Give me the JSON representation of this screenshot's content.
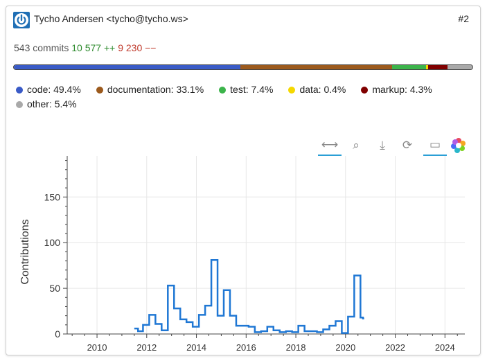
{
  "author": {
    "name_email": "Tycho Andersen <tycho@tycho.ws>",
    "rank": "#2"
  },
  "stats": {
    "commits": "543 commits",
    "additions": "10 577 ++",
    "deletions": "9 230 −−"
  },
  "breakdown": [
    {
      "label": "code: 49.4%",
      "value": 49.4,
      "color": "#3a5bc7"
    },
    {
      "label": "documentation: 33.1%",
      "value": 33.1,
      "color": "#9c5a1d"
    },
    {
      "label": "test: 7.4%",
      "value": 7.4,
      "color": "#3cb44b"
    },
    {
      "label": "data: 0.4%",
      "value": 0.4,
      "color": "#f5d800"
    },
    {
      "label": "markup: 4.3%",
      "value": 4.3,
      "color": "#800000"
    },
    {
      "label": "other: 5.4%",
      "value": 5.4,
      "color": "#a9a9a9"
    }
  ],
  "toolbar": {
    "buttons": [
      {
        "name": "pan-icon",
        "glyph": "⟷",
        "active": true
      },
      {
        "name": "zoom-icon",
        "glyph": "⌕",
        "active": false
      },
      {
        "name": "download-icon",
        "glyph": "⤓",
        "active": false
      },
      {
        "name": "reset-icon",
        "glyph": "⟳",
        "active": false
      },
      {
        "name": "tooltip-icon",
        "glyph": "▭",
        "active": true
      }
    ]
  },
  "chart_data": {
    "type": "line",
    "ylabel": "Contributions",
    "xlabel": "",
    "ylim": [
      0,
      195
    ],
    "xlim": [
      2008.8,
      2024.8
    ],
    "yticks": [
      0,
      50,
      100,
      150
    ],
    "xticks": [
      2010,
      2012,
      2014,
      2016,
      2018,
      2020,
      2022,
      2024
    ],
    "grid": true,
    "step": true,
    "color": "#1f77d4",
    "series": [
      {
        "x": [
          2011.5,
          2011.65,
          2011.85,
          2012.1,
          2012.35,
          2012.6,
          2012.85,
          2013.1,
          2013.35,
          2013.6,
          2013.85,
          2014.1,
          2014.35,
          2014.6,
          2014.85,
          2015.1,
          2015.35,
          2015.6,
          2015.85,
          2016.1,
          2016.35,
          2016.6,
          2016.85,
          2017.1,
          2017.35,
          2017.6,
          2017.85,
          2018.1,
          2018.35,
          2018.6,
          2018.85,
          2019.1,
          2019.35,
          2019.6,
          2019.85,
          2020.1,
          2020.35,
          2020.6,
          2020.7
        ],
        "y": [
          6,
          3,
          10,
          21,
          11,
          4,
          53,
          28,
          16,
          13,
          8,
          21,
          31,
          81,
          20,
          48,
          20,
          9,
          9,
          8,
          2,
          3,
          8,
          4,
          2,
          3,
          2,
          9,
          3,
          3,
          2,
          5,
          9,
          14,
          1,
          19,
          64,
          18,
          17
        ]
      }
    ]
  }
}
